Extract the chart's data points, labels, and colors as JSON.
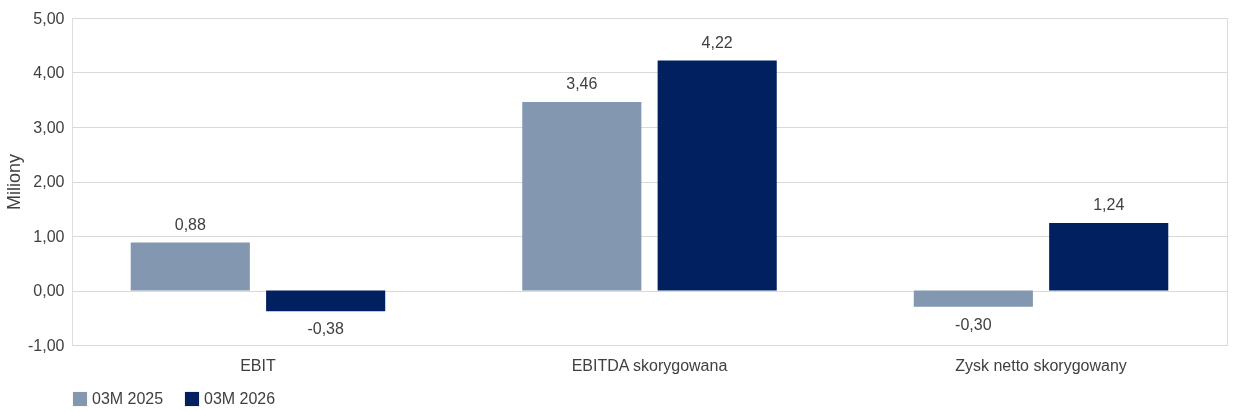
{
  "chart_data": {
    "type": "bar",
    "ylabel": "Miliony",
    "categories": [
      "EBIT",
      "EBITDA skorygowana",
      "Zysk netto skorygowany"
    ],
    "series": [
      {
        "name": "03M 2025",
        "color": "#8497b0",
        "values": [
          0.88,
          3.46,
          -0.3
        ],
        "value_labels": [
          "0,88",
          "3,46",
          "-0,30"
        ]
      },
      {
        "name": "03M 2026",
        "color": "#002060",
        "values": [
          -0.38,
          4.22,
          1.24
        ],
        "value_labels": [
          "-0,38",
          "4,22",
          "1,24"
        ]
      }
    ],
    "ylim": [
      -1,
      5
    ],
    "yticks": [
      {
        "value": -1,
        "label": "-1,00"
      },
      {
        "value": 0,
        "label": "0,00"
      },
      {
        "value": 1,
        "label": "1,00"
      },
      {
        "value": 2,
        "label": "2,00"
      },
      {
        "value": 3,
        "label": "3,00"
      },
      {
        "value": 4,
        "label": "4,00"
      },
      {
        "value": 5,
        "label": "5,00"
      }
    ],
    "grid": "y",
    "legend": "bottom"
  }
}
